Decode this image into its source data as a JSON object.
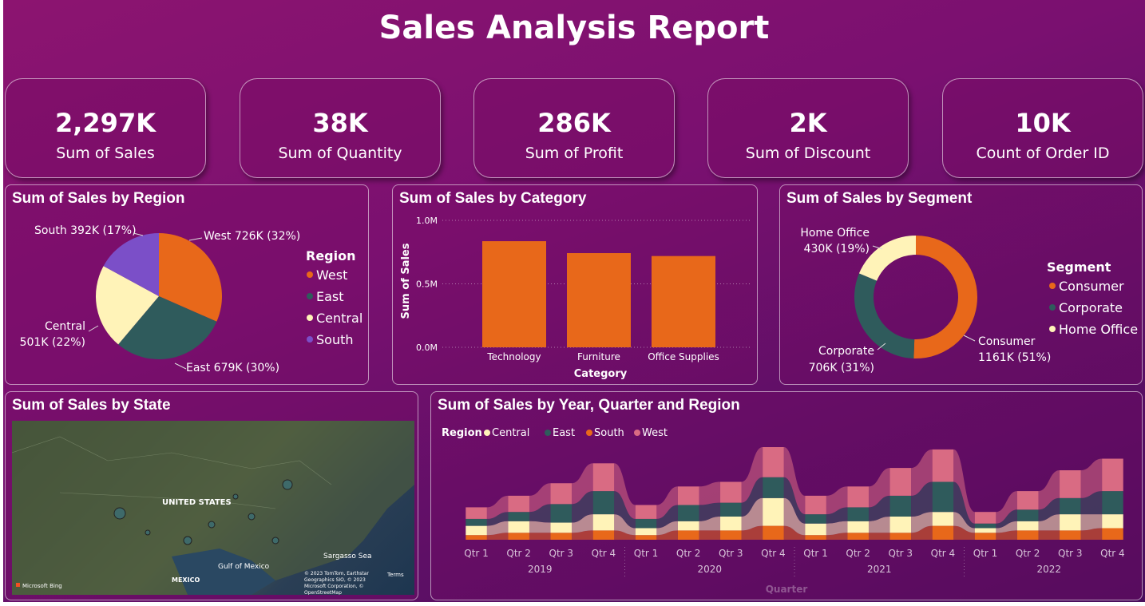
{
  "title": "Sales Analysis Report",
  "colors": {
    "west": "#e8681a",
    "east": "#2f5b5c",
    "central": "#fff3b8",
    "south": "#7b4fc8",
    "pink": "#d96b83"
  },
  "kpis": [
    {
      "value": "2,297K",
      "label": "Sum of Sales"
    },
    {
      "value": "38K",
      "label": "Sum of Quantity"
    },
    {
      "value": "286K",
      "label": "Sum of Profit"
    },
    {
      "value": "2K",
      "label": "Sum of Discount"
    },
    {
      "value": "10K",
      "label": "Count of Order ID"
    }
  ],
  "region_panel": {
    "title": "Sum of Sales by Region",
    "legend_title": "Region"
  },
  "category_panel": {
    "title": "Sum of Sales by Category"
  },
  "segment_panel": {
    "title": "Sum of Sales by Segment",
    "legend_title": "Segment"
  },
  "state_panel": {
    "title": "Sum of Sales by State",
    "map_labels": {
      "country": "UNITED STATES",
      "gulf": "Gulf of Mexico",
      "sea": "Sargasso Sea",
      "mexico": "MEXICO",
      "bing": "Microsoft Bing",
      "attribution": "© 2023 TomTom, Earthstar Geographics SIO, © 2023 Microsoft Corporation, © OpenStreetMap",
      "terms": "Terms"
    }
  },
  "ribbon_panel": {
    "title": "Sum of Sales by Year, Quarter and Region",
    "legend_title": "Region"
  },
  "chart_data": [
    {
      "type": "pie",
      "title": "Sum of Sales by Region",
      "legend_title": "Region",
      "legend_position": "right",
      "slices": [
        {
          "name": "West",
          "value": 726,
          "label": "West 726K (32%)"
        },
        {
          "name": "East",
          "value": 679,
          "label": "East 679K (30%)"
        },
        {
          "name": "Central",
          "value": 501,
          "label_lines": [
            "Central",
            "501K (22%)"
          ]
        },
        {
          "name": "South",
          "value": 392,
          "label": "South 392K (17%)"
        }
      ]
    },
    {
      "type": "bar",
      "title": "Sum of Sales by Category",
      "categories": [
        "Technology",
        "Furniture",
        "Office Supplies"
      ],
      "values": [
        836000,
        742000,
        719000
      ],
      "xlabel": "Category",
      "ylabel": "Sum of Sales",
      "ylim": [
        0,
        1000000
      ],
      "yticks": [
        "0.0M",
        "0.5M",
        "1.0M"
      ],
      "grid": true
    },
    {
      "type": "pie",
      "title": "Sum of Sales by Segment",
      "donut": true,
      "legend_title": "Segment",
      "legend_position": "right",
      "slices": [
        {
          "name": "Consumer",
          "value": 1161,
          "label_lines": [
            "Consumer",
            "1161K (51%)"
          ]
        },
        {
          "name": "Corporate",
          "value": 706,
          "label_lines": [
            "Corporate",
            "706K (31%)"
          ]
        },
        {
          "name": "Home Office",
          "value": 430,
          "label_lines": [
            "Home Office",
            "430K (19%)"
          ]
        }
      ]
    },
    {
      "type": "area",
      "subtype": "ribbon",
      "title": "Sum of Sales by Year, Quarter and Region",
      "xlabel": "Quarter",
      "legend_title": "Region",
      "legend_position": "top-left",
      "years": [
        "2019",
        "2020",
        "2021",
        "2022"
      ],
      "quarters": [
        "Qtr 1",
        "Qtr 2",
        "Qtr 3",
        "Qtr 4"
      ],
      "series": [
        {
          "name": "Central",
          "values": [
            20,
            25,
            22,
            35,
            15,
            20,
            30,
            60,
            25,
            25,
            35,
            30,
            10,
            20,
            35,
            30
          ]
        },
        {
          "name": "East",
          "values": [
            15,
            20,
            40,
            50,
            20,
            35,
            30,
            45,
            20,
            30,
            45,
            65,
            10,
            25,
            35,
            50
          ]
        },
        {
          "name": "South",
          "values": [
            10,
            15,
            15,
            20,
            10,
            20,
            20,
            30,
            10,
            15,
            15,
            30,
            15,
            20,
            20,
            25
          ]
        },
        {
          "name": "West",
          "values": [
            25,
            35,
            45,
            60,
            30,
            40,
            45,
            65,
            40,
            45,
            60,
            70,
            25,
            40,
            60,
            70
          ]
        }
      ]
    }
  ]
}
